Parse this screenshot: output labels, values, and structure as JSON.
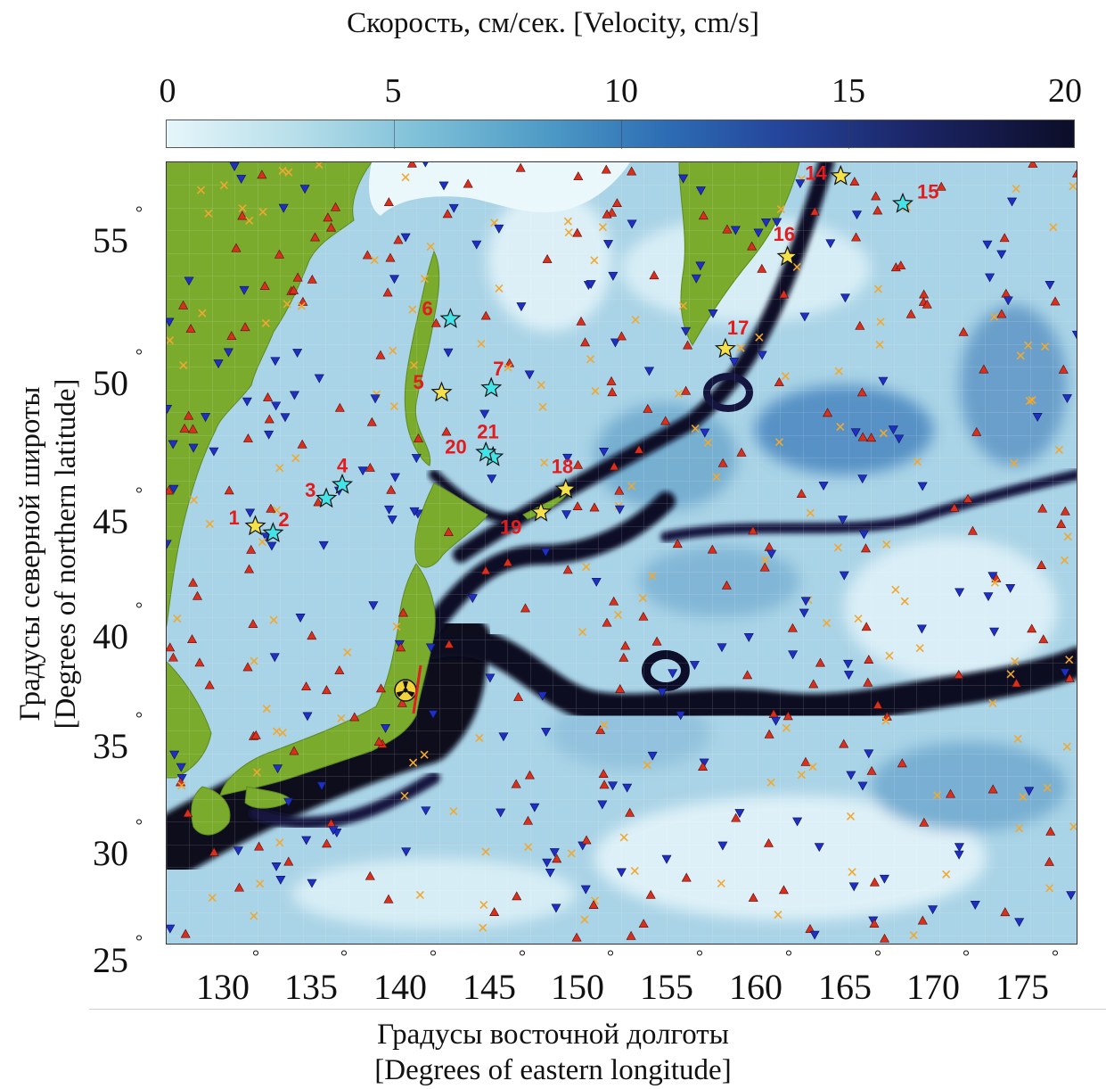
{
  "colorbar": {
    "title": "Скорость, см/сек. [Velocity, cm/s]",
    "ticks": [
      "0",
      "5",
      "10",
      "15",
      "20"
    ],
    "range": [
      0,
      20
    ]
  },
  "axes": {
    "y_label_line1": "Градусы северной широты",
    "y_label_line2": "[Degrees of northern latitude]",
    "x_label_line1": "Градусы восточной долготы",
    "x_label_line2": "[Degrees of eastern longitude]",
    "lat_ticks": [
      "55",
      "50",
      "45",
      "40",
      "35",
      "30",
      "25"
    ],
    "lon_ticks": [
      "130",
      "135",
      "140",
      "145",
      "150",
      "155",
      "160",
      "165",
      "170",
      "175"
    ],
    "degree_symbol": "°"
  },
  "sites": [
    {
      "id": "1",
      "color": "yellow",
      "lon": 131.5,
      "lat": 43.6
    },
    {
      "id": "2",
      "color": "cyan",
      "lon": 132.5,
      "lat": 43.3
    },
    {
      "id": "3",
      "color": "cyan",
      "lon": 135.5,
      "lat": 44.8
    },
    {
      "id": "4",
      "color": "cyan",
      "lon": 136.4,
      "lat": 45.4
    },
    {
      "id": "5",
      "color": "yellow",
      "lon": 142.0,
      "lat": 49.4
    },
    {
      "id": "6",
      "color": "cyan",
      "lon": 142.5,
      "lat": 52.6
    },
    {
      "id": "7",
      "color": "cyan",
      "lon": 144.8,
      "lat": 49.6
    },
    {
      "id": "14",
      "color": "yellow",
      "lon": 164.5,
      "lat": 58.8
    },
    {
      "id": "15",
      "color": "cyan",
      "lon": 168.0,
      "lat": 57.6
    },
    {
      "id": "16",
      "color": "yellow",
      "lon": 161.5,
      "lat": 55.3
    },
    {
      "id": "17",
      "color": "yellow",
      "lon": 158.0,
      "lat": 51.3
    },
    {
      "id": "18",
      "color": "yellow",
      "lon": 149.0,
      "lat": 45.2
    },
    {
      "id": "19",
      "color": "yellow",
      "lon": 147.6,
      "lat": 44.2
    },
    {
      "id": "20",
      "color": "cyan",
      "lon": 144.9,
      "lat": 46.6
    },
    {
      "id": "21",
      "color": "cyan",
      "lon": 144.5,
      "lat": 46.8
    }
  ],
  "colors": {
    "land": "#7aab2c",
    "ocean_low": "#e6f6fa",
    "ocean_high": "#07071c",
    "triangle_up": "#d7301f",
    "triangle_down": "#1f2fbf",
    "cross": "#f0a830",
    "star_yellow": "#f4e14a",
    "star_cyan": "#43e3e8",
    "label": "#e41a1c"
  },
  "icons": {
    "nuclear": "radiation-symbol-icon"
  }
}
